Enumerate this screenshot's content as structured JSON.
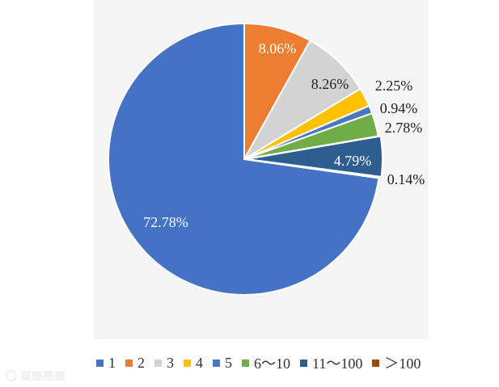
{
  "chart_data": {
    "type": "pie",
    "categories": [
      "1",
      "2",
      "3",
      "4",
      "5",
      "6～10",
      "11～100",
      "＞100"
    ],
    "values": [
      72.78,
      8.06,
      8.26,
      2.25,
      0.94,
      2.78,
      4.79,
      0.14
    ],
    "data_labels": [
      "72.78%",
      "8.06%",
      "8.26%",
      "2.25%",
      "0.94%",
      "2.78%",
      "4.79%",
      "0.14%"
    ],
    "colors": [
      "#4472C4",
      "#ED7D31",
      "#D3D3D3",
      "#FFC000",
      "#4A78C0",
      "#70AD47",
      "#2E5E8F",
      "#9E480E"
    ],
    "legend": "bottom"
  },
  "watermark": {
    "text": "大数跨境"
  }
}
